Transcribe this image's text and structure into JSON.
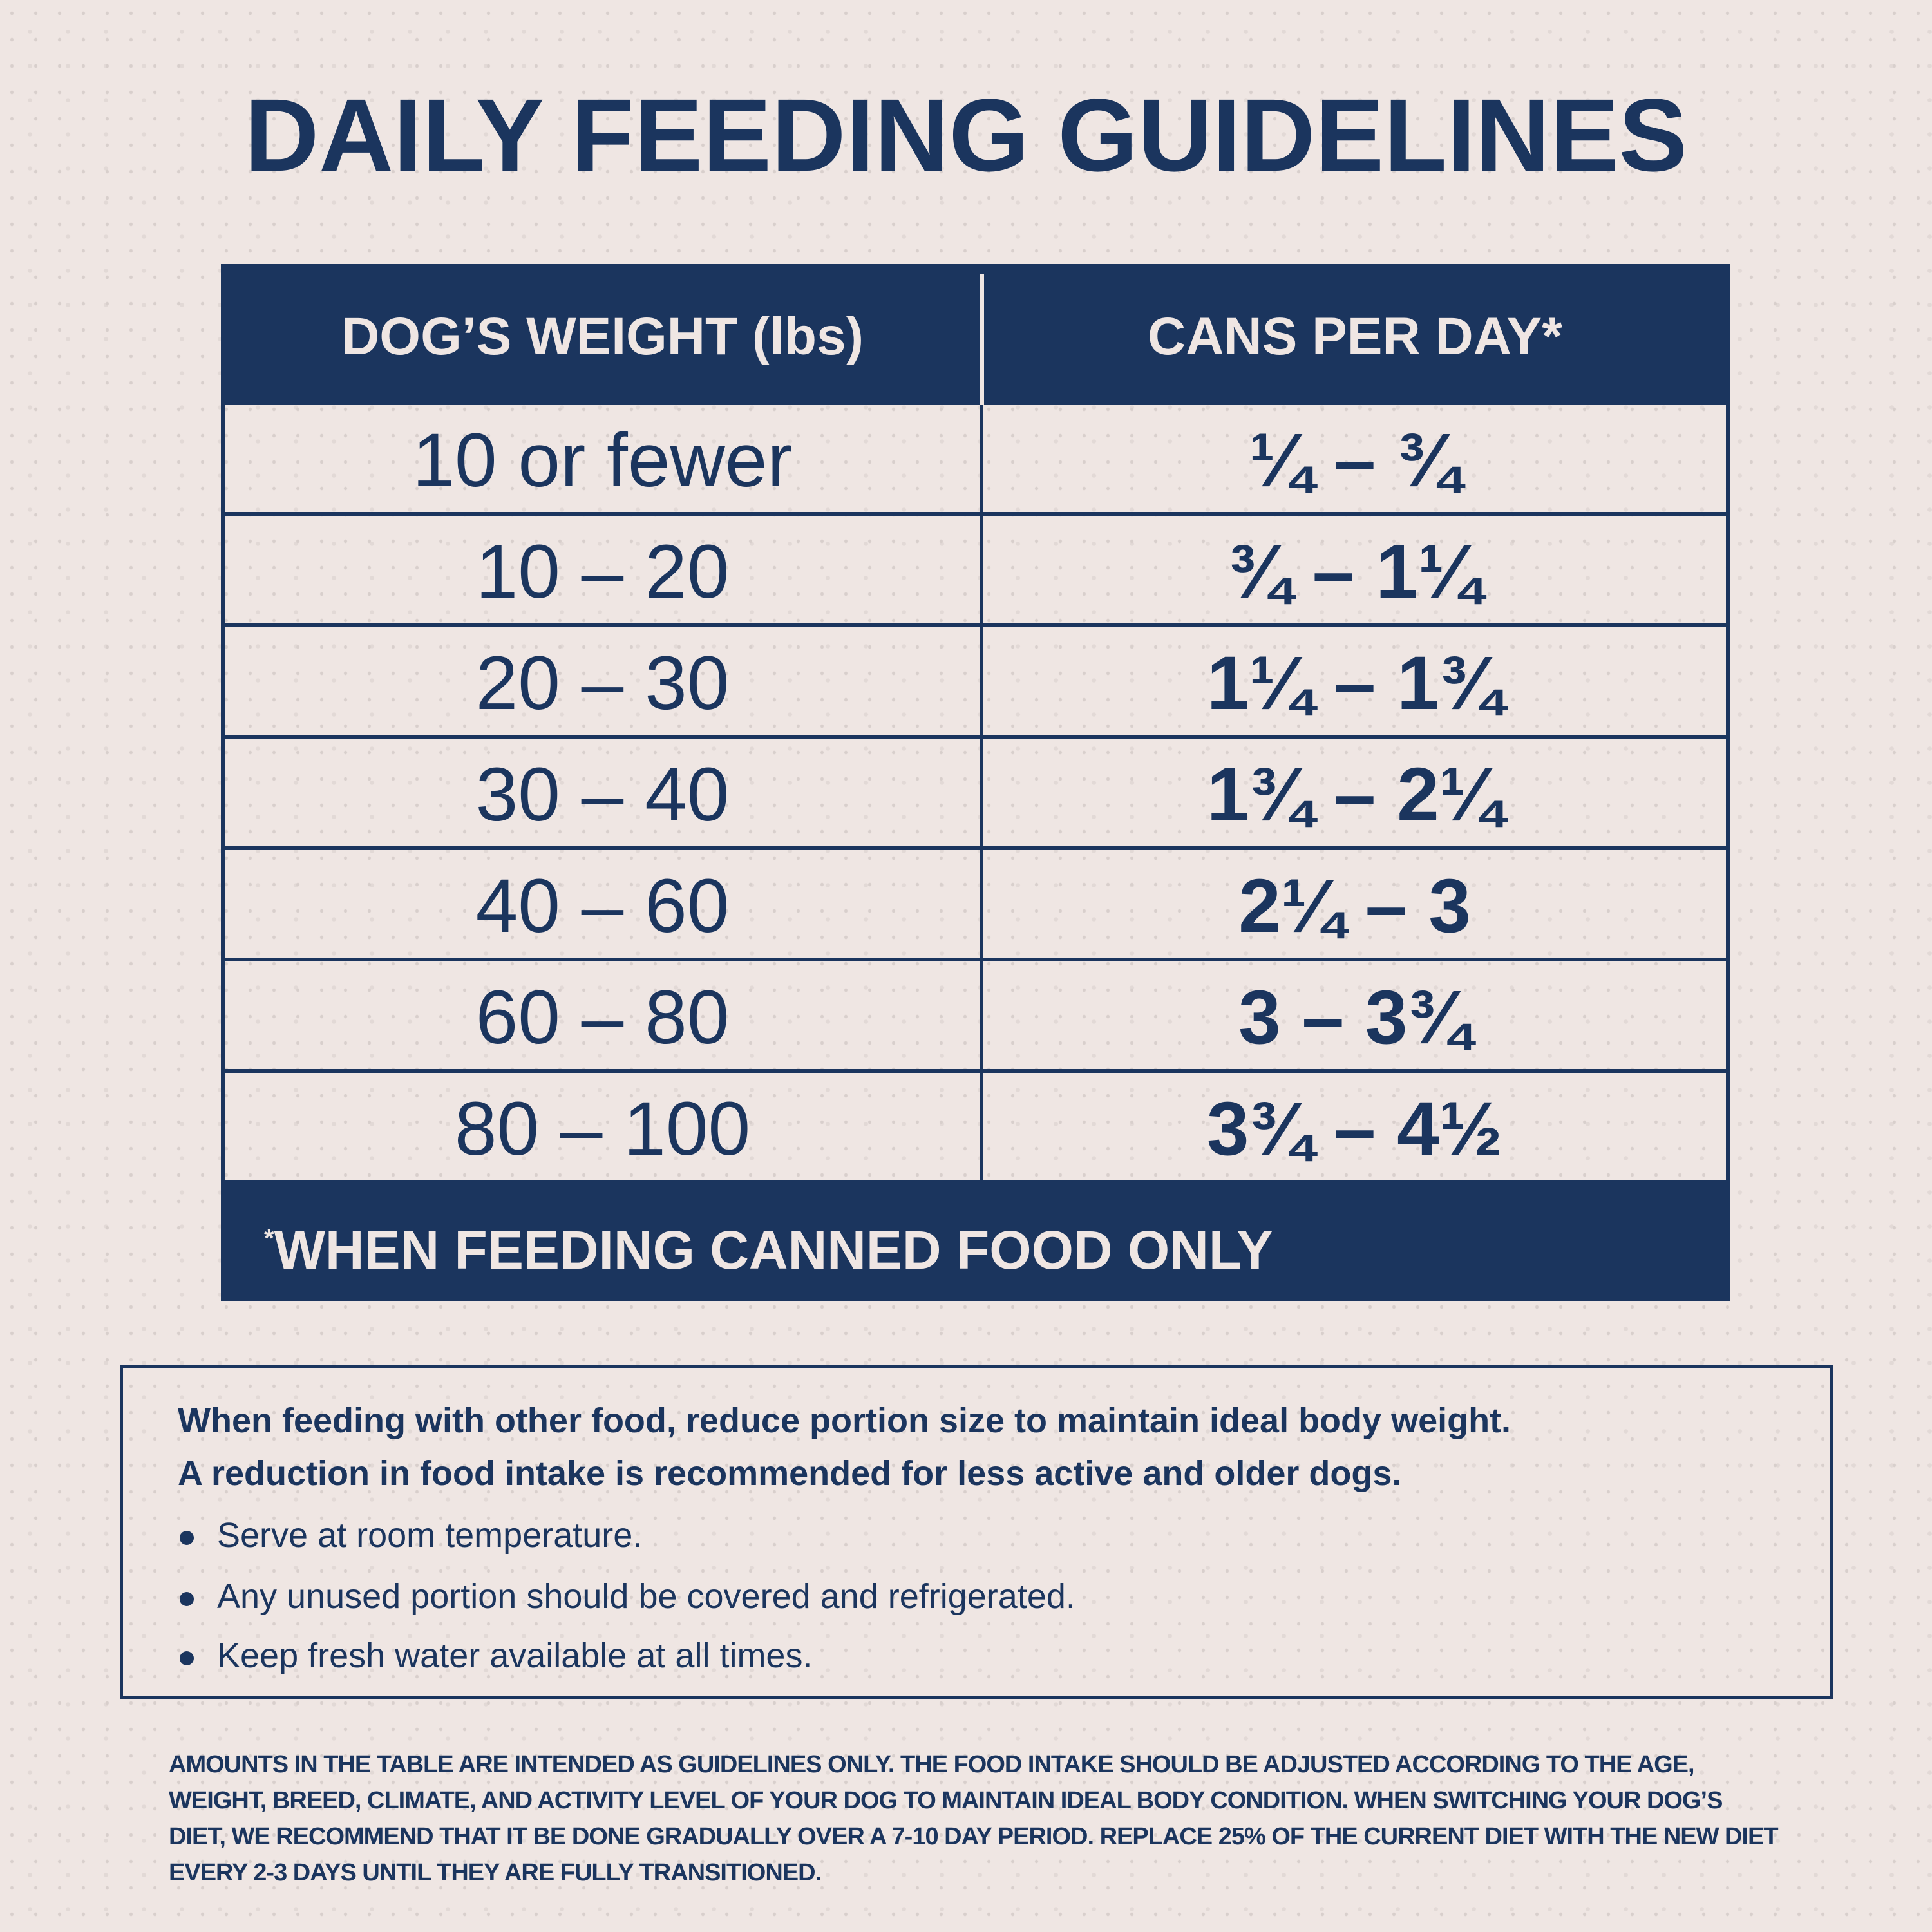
{
  "title": "DAILY FEEDING GUIDELINES",
  "table": {
    "headers": [
      "DOG’S WEIGHT (lbs)",
      "CANS PER DAY*"
    ],
    "rows": [
      {
        "weight": "10 or fewer",
        "cans": "¼ – ¾"
      },
      {
        "weight": "10 – 20",
        "cans": "¾ – 1¼"
      },
      {
        "weight": "20 – 30",
        "cans": "1¼ – 1¾"
      },
      {
        "weight": "30 – 40",
        "cans": "1¾ – 2¼"
      },
      {
        "weight": "40 – 60",
        "cans": "2¼ – 3"
      },
      {
        "weight": "60 – 80",
        "cans": "3 – 3¾"
      },
      {
        "weight": "80 – 100",
        "cans": "3¾ – 4½"
      }
    ],
    "footnote_mark": "*",
    "footnote": "WHEN FEEDING CANNED FOOD ONLY"
  },
  "notes": {
    "lines": [
      "When feeding with other food, reduce portion size to maintain ideal body weight.",
      "A reduction in food intake is recommended for less active and older dogs."
    ],
    "bullets": [
      "Serve at room temperature.",
      "Any unused portion should be covered and refrigerated.",
      "Keep fresh water available at all times."
    ]
  },
  "disclaimer": [
    "AMOUNTS IN THE TABLE ARE INTENDED AS GUIDELINES ONLY. THE FOOD INTAKE SHOULD BE ADJUSTED ACCORDING TO THE AGE, WEIGHT, BREED, CLIMATE,",
    "AND ACTIVITY LEVEL OF YOUR DOG TO MAINTAIN IDEAL BODY CONDITION. WHEN SWITCHING YOUR DOG’S DIET, WE RECOMMEND THAT IT BE DONE",
    "GRADUALLY OVER A 7-10 DAY PERIOD. REPLACE 25% OF THE CURRENT DIET WITH THE NEW DIET EVERY 2-3 DAYS UNTIL THEY ARE FULLY TRANSITIONED."
  ],
  "colors": {
    "navy": "#1b355e",
    "background": "#efe6e3"
  }
}
